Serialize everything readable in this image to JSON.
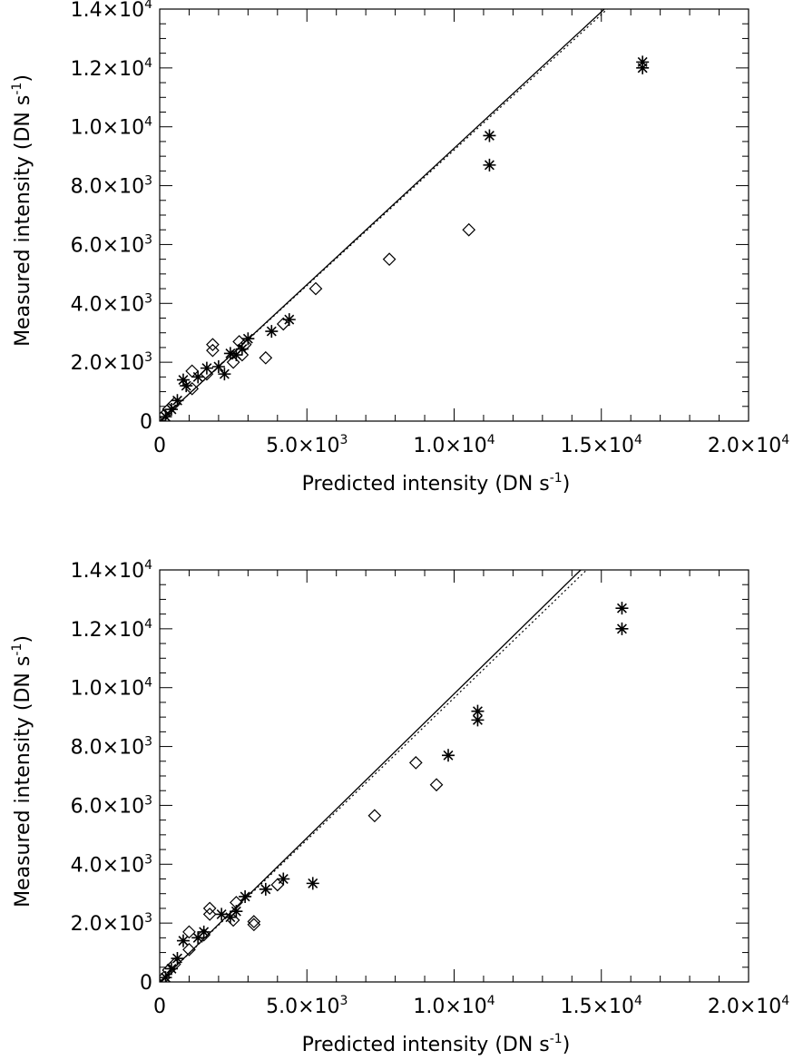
{
  "chart_data": [
    {
      "type": "scatter",
      "xlabel": {
        "prefix": "Predicted intensity (DN s",
        "sup": "-1",
        "suffix": ")"
      },
      "ylabel": {
        "prefix": "Measured intensity (DN s",
        "sup": "-1",
        "suffix": ")"
      },
      "xlim": [
        0,
        20000
      ],
      "ylim": [
        0,
        14000
      ],
      "x_ticks": [
        {
          "value": 0,
          "mant": "0",
          "exp": ""
        },
        {
          "value": 5000,
          "mant": "5.0×10",
          "exp": "3"
        },
        {
          "value": 10000,
          "mant": "1.0×10",
          "exp": "4"
        },
        {
          "value": 15000,
          "mant": "1.5×10",
          "exp": "4"
        },
        {
          "value": 20000,
          "mant": "2.0×10",
          "exp": "4"
        }
      ],
      "y_ticks": [
        {
          "value": 0,
          "mant": "0",
          "exp": ""
        },
        {
          "value": 2000,
          "mant": "2.0×10",
          "exp": "3"
        },
        {
          "value": 4000,
          "mant": "4.0×10",
          "exp": "3"
        },
        {
          "value": 6000,
          "mant": "6.0×10",
          "exp": "3"
        },
        {
          "value": 8000,
          "mant": "8.0×10",
          "exp": "3"
        },
        {
          "value": 10000,
          "mant": "1.0×10",
          "exp": "4"
        },
        {
          "value": 12000,
          "mant": "1.2×10",
          "exp": "4"
        },
        {
          "value": 14000,
          "mant": "1.4×10",
          "exp": "4"
        }
      ],
      "lines": [
        {
          "style": "solid",
          "x": [
            0,
            15100
          ],
          "y": [
            0,
            14000
          ]
        },
        {
          "style": "dotted",
          "x": [
            0,
            15200
          ],
          "y": [
            0,
            14000
          ]
        }
      ],
      "series": [
        {
          "marker": "asterisk",
          "points": [
            [
              16400,
              12200
            ],
            [
              16400,
              12000
            ],
            [
              11200,
              9700
            ],
            [
              11200,
              8700
            ],
            [
              4400,
              3450
            ],
            [
              3800,
              3050
            ],
            [
              3000,
              2800
            ],
            [
              2800,
              2450
            ],
            [
              2600,
              2250
            ],
            [
              2400,
              2300
            ],
            [
              2200,
              1600
            ],
            [
              2000,
              1850
            ],
            [
              1600,
              1800
            ],
            [
              1300,
              1500
            ],
            [
              900,
              1200
            ],
            [
              800,
              1400
            ],
            [
              600,
              700
            ],
            [
              400,
              400
            ],
            [
              200,
              150
            ]
          ]
        },
        {
          "marker": "diamond",
          "points": [
            [
              10500,
              6500
            ],
            [
              7800,
              5500
            ],
            [
              5300,
              4500
            ],
            [
              4200,
              3300
            ],
            [
              3600,
              2150
            ],
            [
              2900,
              2600
            ],
            [
              2800,
              2250
            ],
            [
              2700,
              2700
            ],
            [
              2500,
              2000
            ],
            [
              1800,
              2600
            ],
            [
              1800,
              2400
            ],
            [
              1600,
              1600
            ],
            [
              1100,
              1700
            ],
            [
              1100,
              1100
            ],
            [
              500,
              600
            ],
            [
              300,
              400
            ],
            [
              150,
              200
            ]
          ]
        }
      ]
    },
    {
      "type": "scatter",
      "xlabel": {
        "prefix": "Predicted intensity (DN s",
        "sup": "-1",
        "suffix": ")"
      },
      "ylabel": {
        "prefix": "Measured intensity (DN s",
        "sup": "-1",
        "suffix": ")"
      },
      "xlim": [
        0,
        20000
      ],
      "ylim": [
        0,
        14000
      ],
      "x_ticks": [
        {
          "value": 0,
          "mant": "0",
          "exp": ""
        },
        {
          "value": 5000,
          "mant": "5.0×10",
          "exp": "3"
        },
        {
          "value": 10000,
          "mant": "1.0×10",
          "exp": "4"
        },
        {
          "value": 15000,
          "mant": "1.5×10",
          "exp": "4"
        },
        {
          "value": 20000,
          "mant": "2.0×10",
          "exp": "4"
        }
      ],
      "y_ticks": [
        {
          "value": 0,
          "mant": "0",
          "exp": ""
        },
        {
          "value": 2000,
          "mant": "2.0×10",
          "exp": "3"
        },
        {
          "value": 4000,
          "mant": "4.0×10",
          "exp": "3"
        },
        {
          "value": 6000,
          "mant": "6.0×10",
          "exp": "3"
        },
        {
          "value": 8000,
          "mant": "8.0×10",
          "exp": "3"
        },
        {
          "value": 10000,
          "mant": "1.0×10",
          "exp": "4"
        },
        {
          "value": 12000,
          "mant": "1.2×10",
          "exp": "4"
        },
        {
          "value": 14000,
          "mant": "1.4×10",
          "exp": "4"
        }
      ],
      "lines": [
        {
          "style": "solid",
          "x": [
            0,
            14300
          ],
          "y": [
            0,
            14000
          ]
        },
        {
          "style": "dotted",
          "x": [
            0,
            14500
          ],
          "y": [
            0,
            14000
          ]
        }
      ],
      "series": [
        {
          "marker": "asterisk",
          "points": [
            [
              15700,
              12700
            ],
            [
              15700,
              12000
            ],
            [
              10800,
              9200
            ],
            [
              10800,
              8900
            ],
            [
              9800,
              7700
            ],
            [
              5200,
              3350
            ],
            [
              4200,
              3500
            ],
            [
              3600,
              3150
            ],
            [
              2900,
              2900
            ],
            [
              2600,
              2400
            ],
            [
              2400,
              2200
            ],
            [
              2100,
              2300
            ],
            [
              1500,
              1700
            ],
            [
              1300,
              1500
            ],
            [
              800,
              1400
            ],
            [
              600,
              800
            ],
            [
              400,
              450
            ],
            [
              200,
              150
            ]
          ]
        },
        {
          "marker": "diamond",
          "points": [
            [
              9400,
              6700
            ],
            [
              8700,
              7450
            ],
            [
              7300,
              5650
            ],
            [
              4000,
              3300
            ],
            [
              3200,
              2050
            ],
            [
              3200,
              1950
            ],
            [
              2600,
              2700
            ],
            [
              2500,
              2100
            ],
            [
              1700,
              2500
            ],
            [
              1700,
              2300
            ],
            [
              1500,
              1600
            ],
            [
              1000,
              1700
            ],
            [
              1000,
              1100
            ],
            [
              500,
              600
            ],
            [
              300,
              400
            ],
            [
              150,
              150
            ]
          ]
        }
      ]
    }
  ]
}
